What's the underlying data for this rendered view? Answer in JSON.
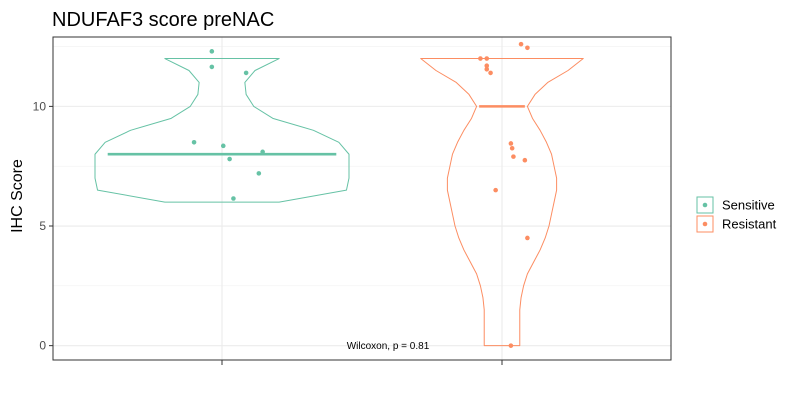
{
  "chart_data": {
    "type": "violin",
    "title": "NDUFAF3 score preNAC",
    "ylabel": "IHC Score",
    "xlabel": "",
    "ylim": [
      -0.6,
      12.9
    ],
    "yticks": [
      0,
      5,
      10
    ],
    "grid": true,
    "legend_position": "right",
    "annotation": "Wilcoxon, p = 0.81",
    "groups": [
      {
        "name": "Sensitive",
        "color": "#66c2a5",
        "median": 8,
        "points": [
          12.3,
          11.65,
          11.4,
          8.5,
          8.35,
          8.1,
          7.8,
          7.2,
          6.15
        ],
        "jitter": [
          -0.08,
          -0.08,
          0.19,
          -0.22,
          0.01,
          0.32,
          0.06,
          0.29,
          0.09
        ],
        "density": [
          [
            6,
            0.45
          ],
          [
            6.5,
            0.98
          ],
          [
            7,
            1.0
          ],
          [
            7.5,
            1.0
          ],
          [
            8,
            1.0
          ],
          [
            8.5,
            0.92
          ],
          [
            9,
            0.72
          ],
          [
            9.5,
            0.4
          ],
          [
            10,
            0.25
          ],
          [
            10.5,
            0.19
          ],
          [
            11,
            0.18
          ],
          [
            11.5,
            0.26
          ],
          [
            12,
            0.45
          ]
        ]
      },
      {
        "name": "Resistant",
        "color": "#fc8d62",
        "median": 10,
        "points": [
          12.6,
          12.45,
          12.0,
          12.0,
          11.7,
          11.55,
          11.4,
          8.45,
          8.25,
          7.9,
          7.75,
          6.5,
          4.5,
          0.0
        ],
        "jitter": [
          0.15,
          0.2,
          -0.17,
          -0.12,
          -0.12,
          -0.12,
          -0.09,
          0.07,
          0.08,
          0.09,
          0.18,
          -0.05,
          0.2,
          0.07
        ],
        "density": [
          [
            0,
            0.14
          ],
          [
            0.5,
            0.14
          ],
          [
            1,
            0.14
          ],
          [
            1.5,
            0.14
          ],
          [
            2,
            0.15
          ],
          [
            2.5,
            0.17
          ],
          [
            3,
            0.2
          ],
          [
            3.5,
            0.25
          ],
          [
            4,
            0.3
          ],
          [
            4.5,
            0.34
          ],
          [
            5,
            0.37
          ],
          [
            5.5,
            0.39
          ],
          [
            6,
            0.41
          ],
          [
            6.5,
            0.43
          ],
          [
            7,
            0.43
          ],
          [
            7.5,
            0.41
          ],
          [
            8,
            0.39
          ],
          [
            8.5,
            0.35
          ],
          [
            9,
            0.3
          ],
          [
            9.5,
            0.24
          ],
          [
            10,
            0.2
          ],
          [
            10.5,
            0.26
          ],
          [
            11,
            0.36
          ],
          [
            11.5,
            0.52
          ],
          [
            12,
            0.64
          ]
        ]
      }
    ]
  }
}
